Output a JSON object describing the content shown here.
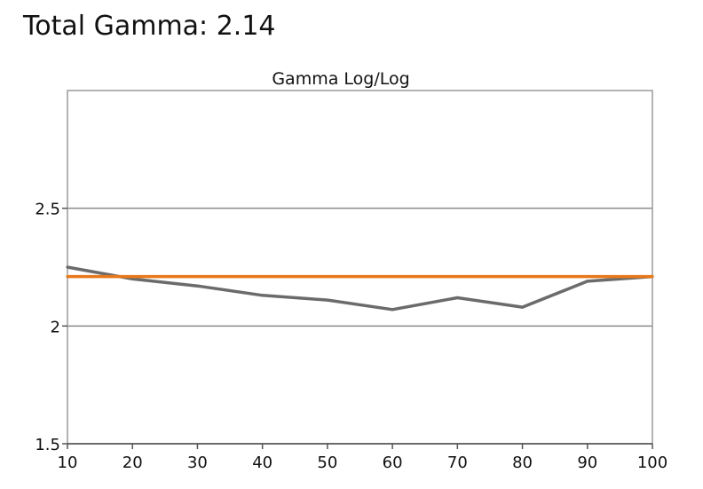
{
  "header": {
    "title": "Total Gamma: 2.14"
  },
  "chart_data": {
    "type": "line",
    "title": "Gamma Log/Log",
    "xlabel": "",
    "ylabel": "",
    "xlim": [
      10,
      100
    ],
    "ylim": [
      1.5,
      3.0
    ],
    "x_ticks": [
      "10",
      "20",
      "30",
      "40",
      "50",
      "60",
      "70",
      "80",
      "90",
      "100"
    ],
    "y_ticks": [
      {
        "value": 1.5,
        "label": "1.5"
      },
      {
        "value": 2.0,
        "label": "2"
      },
      {
        "value": 2.5,
        "label": "2.5"
      }
    ],
    "grid": "horizontal",
    "legend": "none",
    "series": [
      {
        "color": "#6b6b6b",
        "x": [
          10,
          20,
          30,
          40,
          50,
          60,
          70,
          80,
          90,
          100
        ],
        "y": [
          2.25,
          2.2,
          2.17,
          2.13,
          2.11,
          2.07,
          2.12,
          2.08,
          2.19,
          2.21
        ]
      },
      {
        "color": "#e8791a",
        "x": [
          10,
          100
        ],
        "y": [
          2.21,
          2.21
        ]
      }
    ]
  }
}
